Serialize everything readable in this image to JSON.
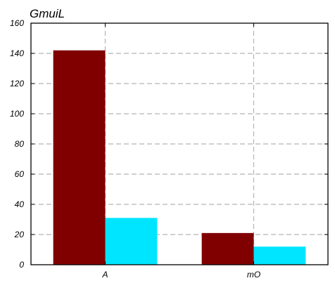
{
  "chart_data": {
    "type": "bar",
    "title": "GmuiL",
    "xlabel": "",
    "ylabel": "",
    "categories": [
      "A",
      "mO"
    ],
    "series": [
      {
        "values": [
          142,
          21
        ],
        "color": "#800000"
      },
      {
        "values": [
          31,
          12
        ],
        "color": "#00e5ff"
      }
    ],
    "ylim": [
      0,
      160
    ],
    "yticks": [
      "0",
      "20",
      "40",
      "60",
      "80",
      "100",
      "120",
      "140",
      "160"
    ],
    "grid": true,
    "legend": "none"
  }
}
